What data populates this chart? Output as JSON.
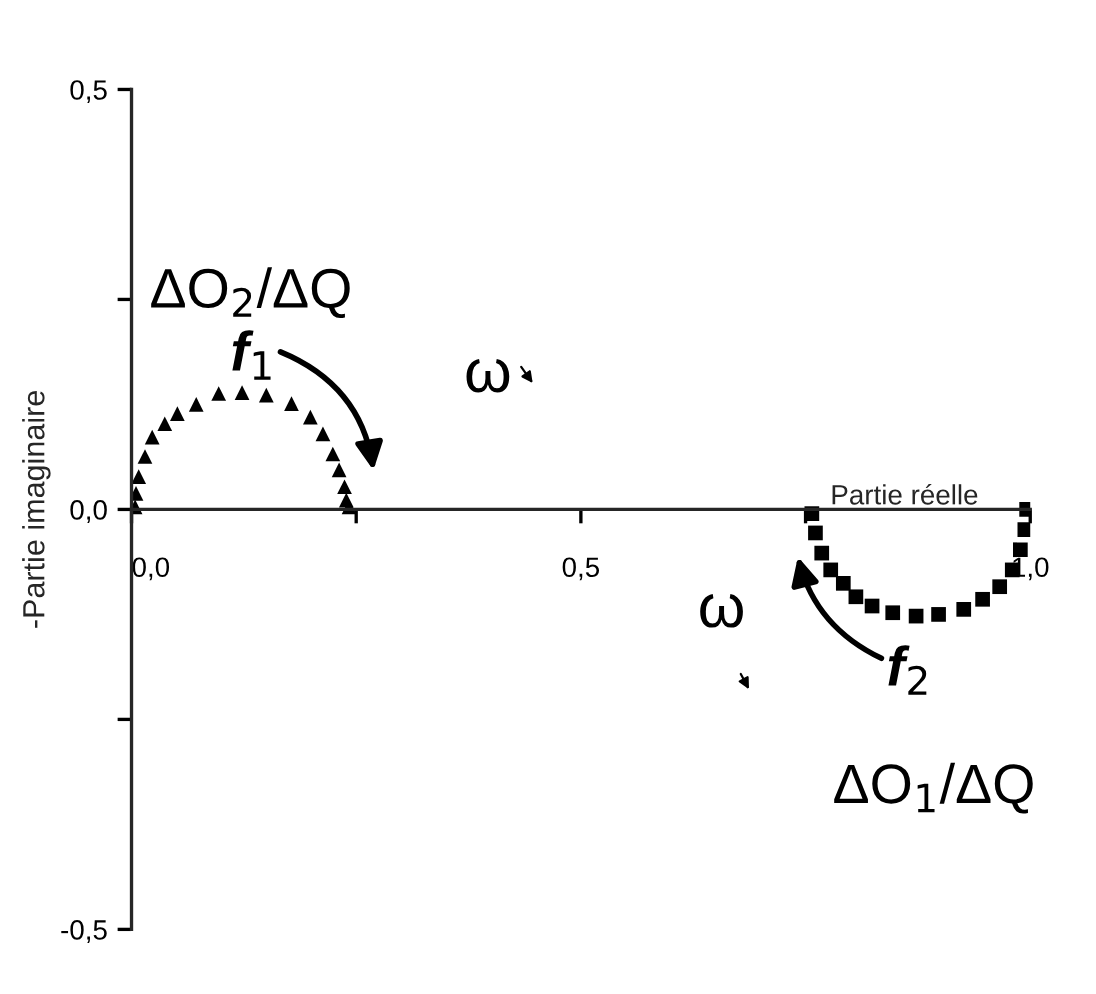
{
  "chart_data": {
    "type": "scatter",
    "xlabel": "Partie réelle",
    "ylabel": "-Partie imaginaire",
    "xlim": [
      0,
      1.0
    ],
    "ylim": [
      -0.5,
      0.5
    ],
    "xticks": [
      {
        "value": 0,
        "label": "0,0"
      },
      {
        "value": 0.25,
        "label": null
      },
      {
        "value": 0.5,
        "label": "0,5"
      },
      {
        "value": 0.75,
        "label": null
      },
      {
        "value": 1.0,
        "label": "1,0"
      }
    ],
    "yticks": [
      {
        "value": -0.5,
        "label": "-0,5"
      },
      {
        "value": -0.25,
        "label": null
      },
      {
        "value": 0,
        "label": "0,0"
      },
      {
        "value": 0.25,
        "label": null
      },
      {
        "value": 0.5,
        "label": "0,5"
      }
    ],
    "grid": false,
    "legend": false,
    "series": [
      {
        "name": "ΔO$_{2}$/ΔQ",
        "color": "#000000",
        "marker": "triangle",
        "x": [
          0.004,
          0.005,
          0.008,
          0.015,
          0.023,
          0.037,
          0.051,
          0.072,
          0.097,
          0.123,
          0.15,
          0.178,
          0.199,
          0.213,
          0.224,
          0.231,
          0.237,
          0.239,
          0.242
        ],
        "values": [
          0.003,
          0.019,
          0.039,
          0.063,
          0.086,
          0.102,
          0.114,
          0.125,
          0.138,
          0.139,
          0.136,
          0.126,
          0.11,
          0.09,
          0.066,
          0.047,
          0.027,
          0.011,
          0.003
        ]
      },
      {
        "name": "ΔO$_{1}$/ΔQ",
        "color": "#000000",
        "marker": "square",
        "x": [
          0.757,
          0.761,
          0.768,
          0.778,
          0.792,
          0.806,
          0.824,
          0.847,
          0.873,
          0.898,
          0.926,
          0.947,
          0.966,
          0.98,
          0.989,
          0.994,
          0.996
        ],
        "values": [
          -0.005,
          -0.028,
          -0.052,
          -0.072,
          -0.088,
          -0.104,
          -0.115,
          -0.123,
          -0.127,
          -0.125,
          -0.119,
          -0.107,
          -0.092,
          -0.072,
          -0.048,
          -0.024,
          0.0
        ]
      }
    ],
    "annotations": [
      "f$_{1}$",
      "ω",
      "f$_{2}$",
      "ω"
    ]
  }
}
